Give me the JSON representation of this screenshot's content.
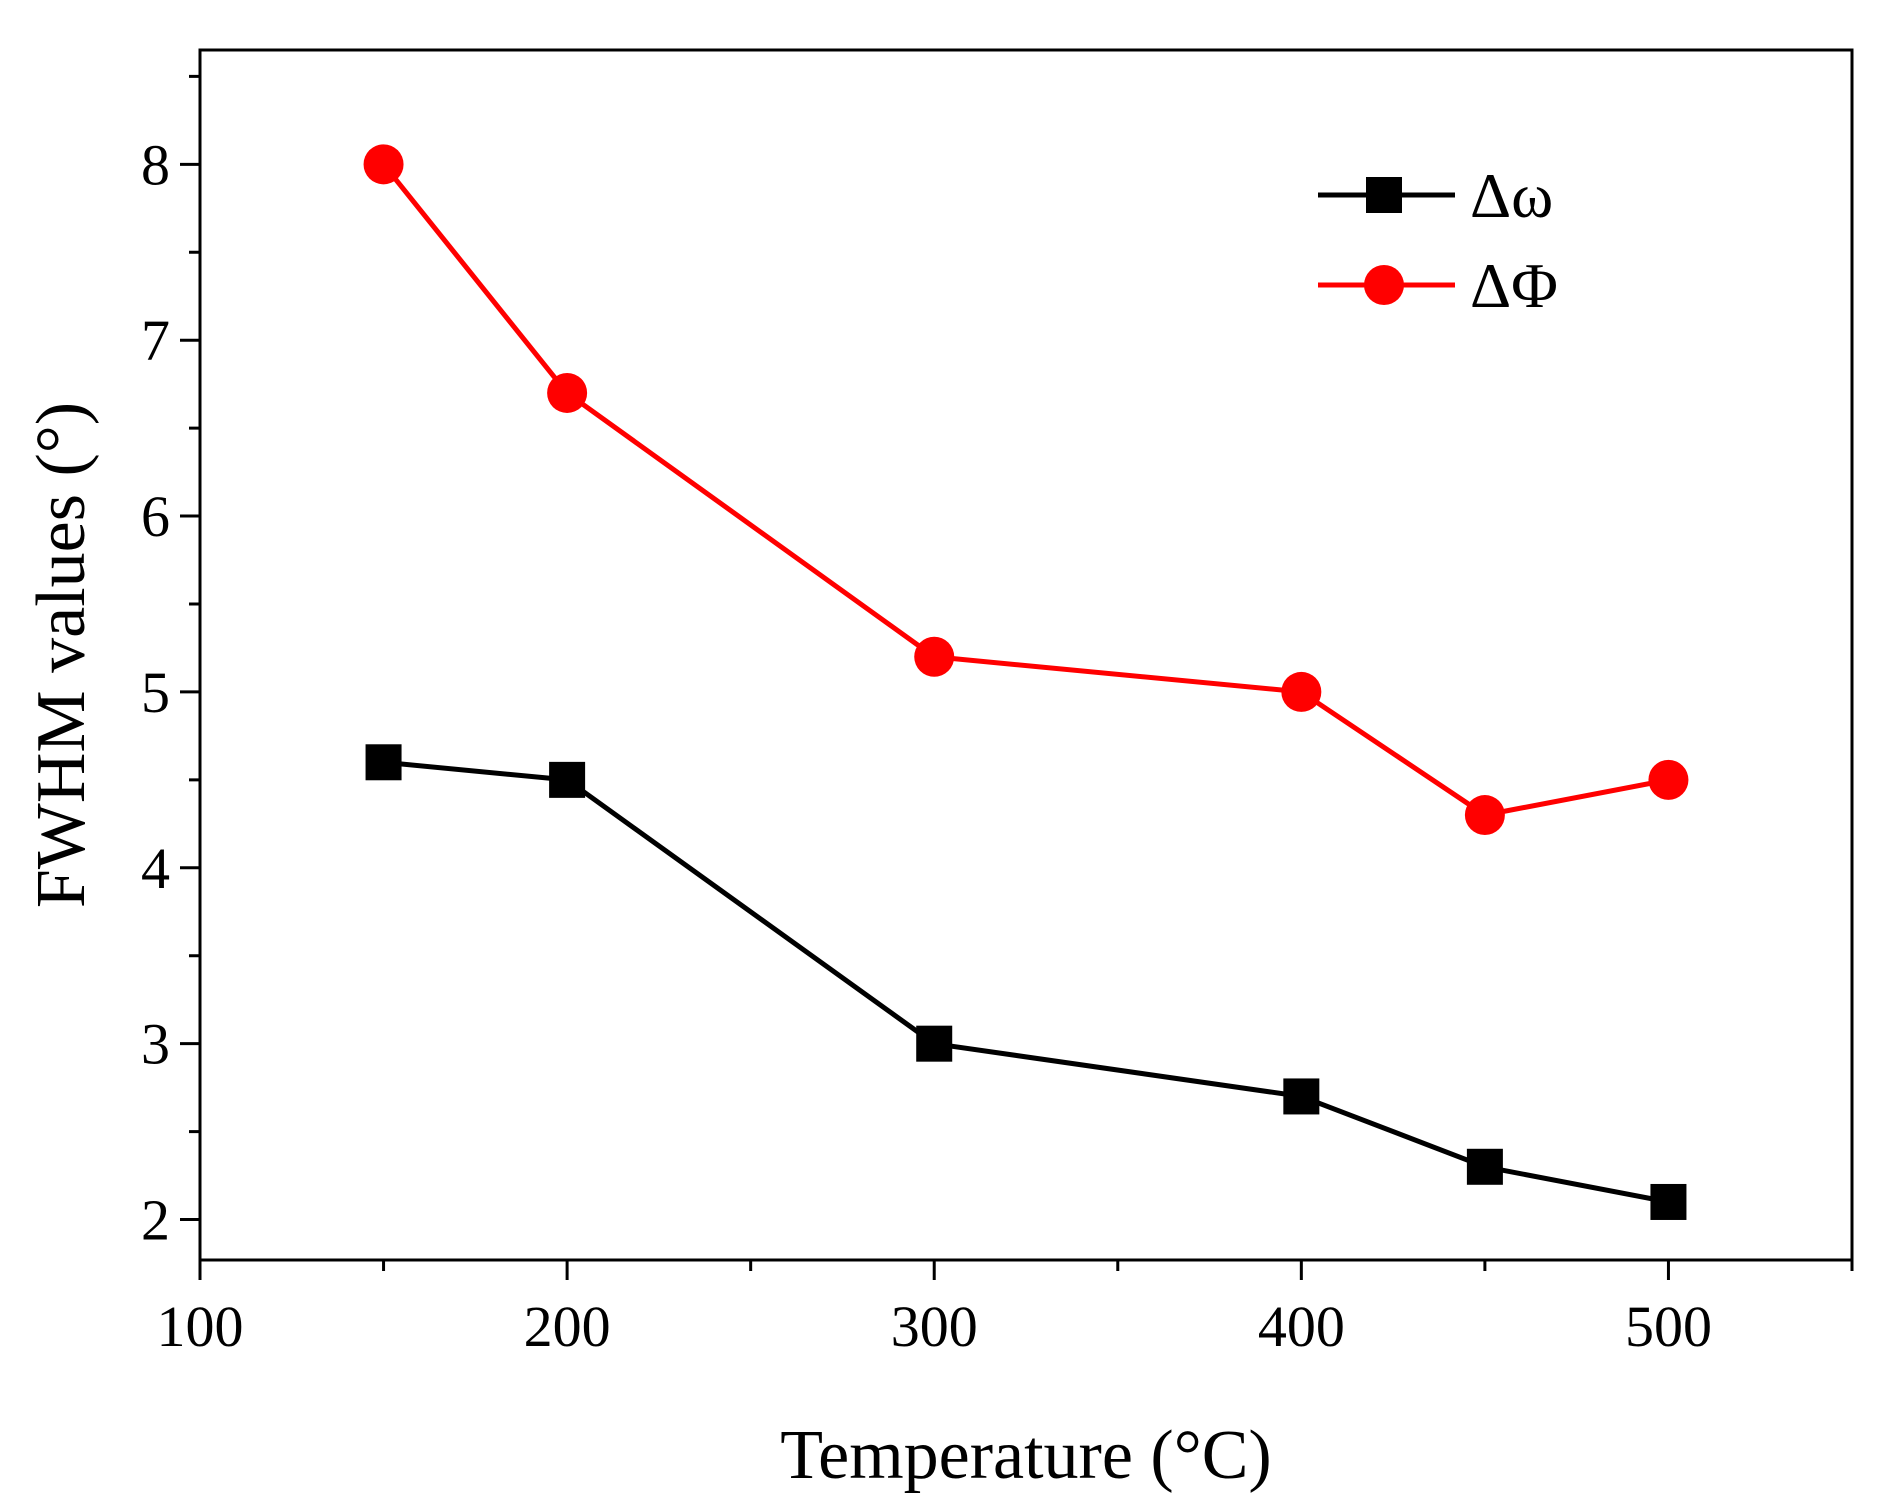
{
  "chart_data": {
    "type": "line",
    "title": "",
    "xlabel": "Temperature (°C)",
    "ylabel": "FWHM values (°)",
    "xlim": [
      100,
      550
    ],
    "ylim": [
      1.77,
      8.65
    ],
    "xticks": [
      100,
      200,
      300,
      400,
      500
    ],
    "xminor": [
      150,
      250,
      350,
      450,
      550
    ],
    "yticks": [
      2,
      3,
      4,
      5,
      6,
      7,
      8
    ],
    "grid": false,
    "legend_position": "top-right",
    "series": [
      {
        "name": "Δω",
        "marker": "square",
        "color": "#000000",
        "x": [
          150,
          200,
          300,
          400,
          450,
          500
        ],
        "y": [
          4.6,
          4.5,
          3.0,
          2.7,
          2.3,
          2.1
        ]
      },
      {
        "name": "ΔΦ",
        "marker": "circle",
        "color": "#ff0000",
        "x": [
          150,
          200,
          300,
          400,
          450,
          500
        ],
        "y": [
          8.0,
          6.7,
          5.2,
          5.0,
          4.3,
          4.5
        ]
      }
    ]
  }
}
